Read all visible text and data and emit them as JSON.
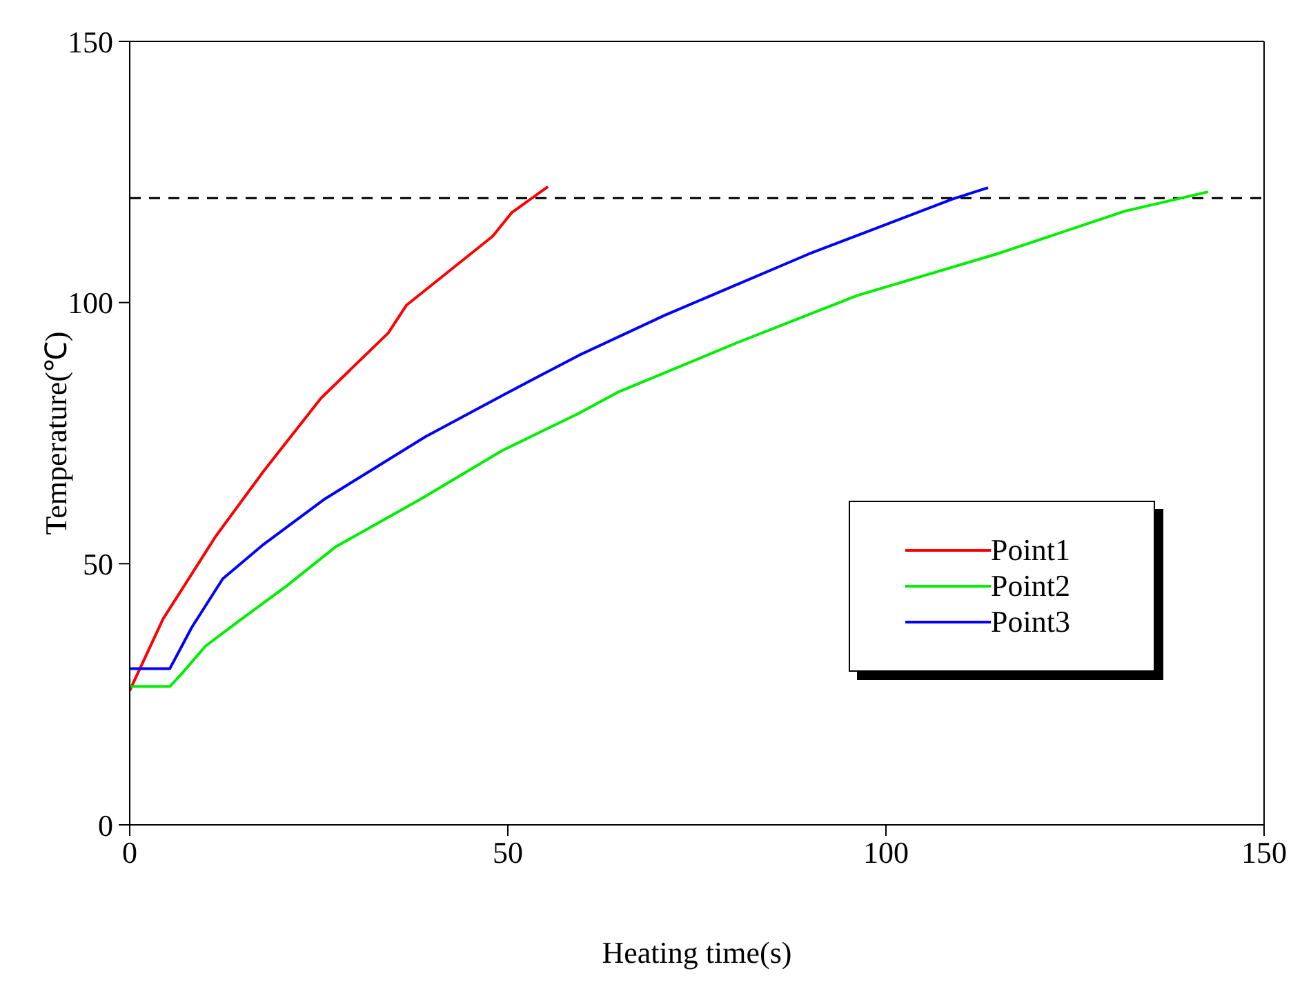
{
  "chart_data": {
    "type": "line",
    "xlabel": "Heating time(s)",
    "ylabel": "Temperature(℃)",
    "xlim": [
      0,
      150
    ],
    "xticks": [
      0,
      50,
      100,
      150
    ],
    "ylim": [
      0,
      150
    ],
    "yticks": [
      0,
      50,
      100,
      150
    ],
    "grid": false,
    "legend": "right",
    "marker": "none",
    "line_style": "solid",
    "ref_lines": [
      {
        "axis": "y",
        "value": 120,
        "color": "#000000",
        "line_style": "dashed"
      }
    ],
    "series": [
      {
        "name": "Point1",
        "color": "#ff0000",
        "x": [
          0,
          4.4,
          11.4,
          17.7,
          25.3,
          34.2,
          36.6,
          48,
          50.5,
          55.3
        ],
        "values": [
          25.7,
          39.4,
          55.3,
          67.7,
          81.7,
          94.2,
          99.5,
          112.7,
          117.2,
          122.2
        ]
      },
      {
        "name": "Point2",
        "color": "#00ee00",
        "x": [
          0,
          5.3,
          6.8,
          10,
          14.5,
          20.8,
          27.2,
          38.5,
          49.3,
          59.4,
          64.5,
          80.3,
          96.1,
          115.1,
          131.6,
          142.6
        ],
        "values": [
          26.5,
          26.5,
          28.8,
          34.2,
          39.1,
          45.8,
          53.2,
          62.4,
          71.7,
          78.8,
          82.8,
          92.3,
          101.3,
          109.5,
          117.5,
          121.2
        ]
      },
      {
        "name": "Point3",
        "color": "#0000ff",
        "x": [
          0,
          5.3,
          8.2,
          12.3,
          17.7,
          25.8,
          39.1,
          49.4,
          59.4,
          70.8,
          89.8,
          108.8,
          113.5
        ],
        "values": [
          29.9,
          29.9,
          37.8,
          47.1,
          53.7,
          62.4,
          74.3,
          82.3,
          89.9,
          97.6,
          109.3,
          119.8,
          122
        ]
      }
    ]
  }
}
